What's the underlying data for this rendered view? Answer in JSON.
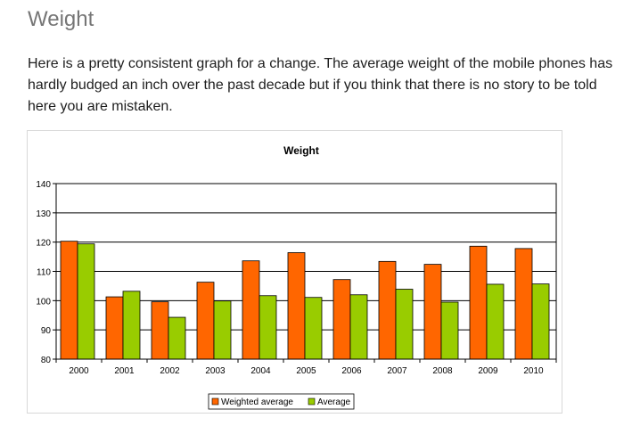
{
  "article": {
    "heading": "Weight",
    "intro": "Here is a pretty consistent graph for a change. The average weight of the mobile phones has hardly budged an inch over the past decade but if you think that there is no story to be told here you are mistaken."
  },
  "chart_data": {
    "type": "bar",
    "title": "Weight",
    "xlabel": "",
    "ylabel": "",
    "categories": [
      "2000",
      "2001",
      "2002",
      "2003",
      "2004",
      "2005",
      "2006",
      "2007",
      "2008",
      "2009",
      "2010"
    ],
    "series": [
      {
        "name": "Weighted average",
        "color": "#ff6600",
        "values": [
          120.3,
          101.3,
          99.6,
          106.3,
          113.6,
          116.4,
          107.2,
          113.4,
          112.4,
          118.6,
          117.8
        ]
      },
      {
        "name": "Average",
        "color": "#99cc00",
        "values": [
          119.4,
          103.2,
          94.3,
          99.9,
          101.7,
          101.1,
          102.0,
          103.9,
          99.5,
          105.6,
          105.7
        ]
      }
    ],
    "ylim": [
      80,
      140
    ],
    "yticks": [
      "80",
      "90",
      "100",
      "110",
      "120",
      "130",
      "140"
    ],
    "grid": true,
    "legend": "bottom"
  }
}
